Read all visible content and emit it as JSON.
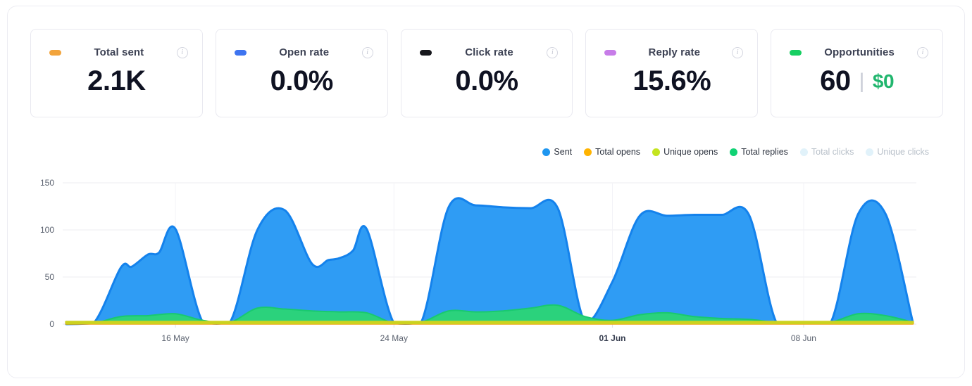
{
  "cards": [
    {
      "label": "Total sent",
      "value": "2.1K",
      "pill_color": "#f2a43c",
      "info_icon": "i"
    },
    {
      "label": "Open rate",
      "value": "0.0%",
      "pill_color": "#3e74f0",
      "info_icon": "i"
    },
    {
      "label": "Click rate",
      "value": "0.0%",
      "pill_color": "#17181d",
      "info_icon": "i"
    },
    {
      "label": "Reply rate",
      "value": "15.6%",
      "pill_color": "#c77ce8",
      "info_icon": "i"
    },
    {
      "label": "Opportunities",
      "value": "60",
      "divider": "|",
      "secondary_value": "$0",
      "pill_color": "#17cf62",
      "info_icon": "i"
    }
  ],
  "legend": {
    "items": [
      {
        "label": "Sent",
        "color": "#1e96f0",
        "disabled": false
      },
      {
        "label": "Total opens",
        "color": "#ffb300",
        "disabled": false
      },
      {
        "label": "Unique opens",
        "color": "#c4e41f",
        "disabled": false
      },
      {
        "label": "Total replies",
        "color": "#10d274",
        "disabled": false
      },
      {
        "label": "Total clicks",
        "color": "#e1f2fa",
        "disabled": true
      },
      {
        "label": "Unique clicks",
        "color": "#e1f2fa",
        "disabled": true
      }
    ]
  },
  "chart_data": {
    "type": "area",
    "title": "",
    "xlabel": "",
    "ylabel": "",
    "grid": true,
    "legend_position": "top-right",
    "x_axis": {
      "start_date": "12 May",
      "end_date": "12 Jun",
      "days_span": 31,
      "ticks": [
        {
          "label": "16 May",
          "day": 4,
          "bold": false
        },
        {
          "label": "24 May",
          "day": 12,
          "bold": false
        },
        {
          "label": "01 Jun",
          "day": 20,
          "bold": true
        },
        {
          "label": "08 Jun",
          "day": 27,
          "bold": false
        }
      ]
    },
    "y_axis": {
      "min": 0,
      "max": 150,
      "ticks": [
        0,
        50,
        100,
        150
      ]
    },
    "series": [
      {
        "name": "Sent",
        "fill": "#2f9cf4",
        "stroke": "#1482ec",
        "stroke_width": 3,
        "points": [
          [
            0,
            0
          ],
          [
            1,
            1
          ],
          [
            2,
            60
          ],
          [
            2.4,
            61
          ],
          [
            3,
            74
          ],
          [
            3.4,
            76
          ],
          [
            4,
            101
          ],
          [
            5,
            2
          ],
          [
            6,
            2
          ],
          [
            7,
            100
          ],
          [
            8,
            121
          ],
          [
            9,
            64
          ],
          [
            9.6,
            68
          ],
          [
            10,
            70
          ],
          [
            10.5,
            78
          ],
          [
            11,
            101
          ],
          [
            12,
            1
          ],
          [
            13,
            2
          ],
          [
            14,
            124
          ],
          [
            15,
            126
          ],
          [
            16,
            124
          ],
          [
            17,
            123
          ],
          [
            18,
            123
          ],
          [
            19,
            2
          ],
          [
            20,
            45
          ],
          [
            21,
            115
          ],
          [
            22,
            115
          ],
          [
            23,
            116
          ],
          [
            24,
            116
          ],
          [
            25,
            116
          ],
          [
            26,
            2
          ],
          [
            27,
            1
          ],
          [
            28,
            2
          ],
          [
            29,
            117
          ],
          [
            30,
            117
          ],
          [
            31,
            2
          ]
        ]
      },
      {
        "name": "Total replies",
        "fill": "#2bd27c",
        "stroke": "#19c96f",
        "stroke_width": 2,
        "points": [
          [
            0,
            0
          ],
          [
            1,
            1
          ],
          [
            2,
            8
          ],
          [
            3,
            9
          ],
          [
            4,
            11
          ],
          [
            5,
            4
          ],
          [
            6,
            2
          ],
          [
            7,
            17
          ],
          [
            8,
            16
          ],
          [
            9,
            14
          ],
          [
            10,
            13
          ],
          [
            11,
            12
          ],
          [
            12,
            1
          ],
          [
            13,
            2
          ],
          [
            14,
            14
          ],
          [
            15,
            13
          ],
          [
            16,
            14
          ],
          [
            17,
            17
          ],
          [
            18,
            20
          ],
          [
            19,
            8
          ],
          [
            20,
            4
          ],
          [
            21,
            10
          ],
          [
            22,
            12
          ],
          [
            23,
            8
          ],
          [
            24,
            6
          ],
          [
            25,
            5
          ],
          [
            26,
            2
          ],
          [
            27,
            1
          ],
          [
            28,
            2
          ],
          [
            29,
            11
          ],
          [
            30,
            9
          ],
          [
            31,
            2
          ]
        ]
      },
      {
        "name": "Total opens",
        "fill": "#efa711",
        "stroke": "#efa711",
        "stroke_width": 3,
        "points": [
          [
            0,
            0.6
          ],
          [
            31,
            0.6
          ]
        ]
      },
      {
        "name": "Unique opens",
        "fill": "#ccd21f",
        "stroke": "#ccd21f",
        "stroke_width": 3.5,
        "points": [
          [
            0,
            2.2
          ],
          [
            31,
            2.2
          ]
        ]
      }
    ]
  }
}
